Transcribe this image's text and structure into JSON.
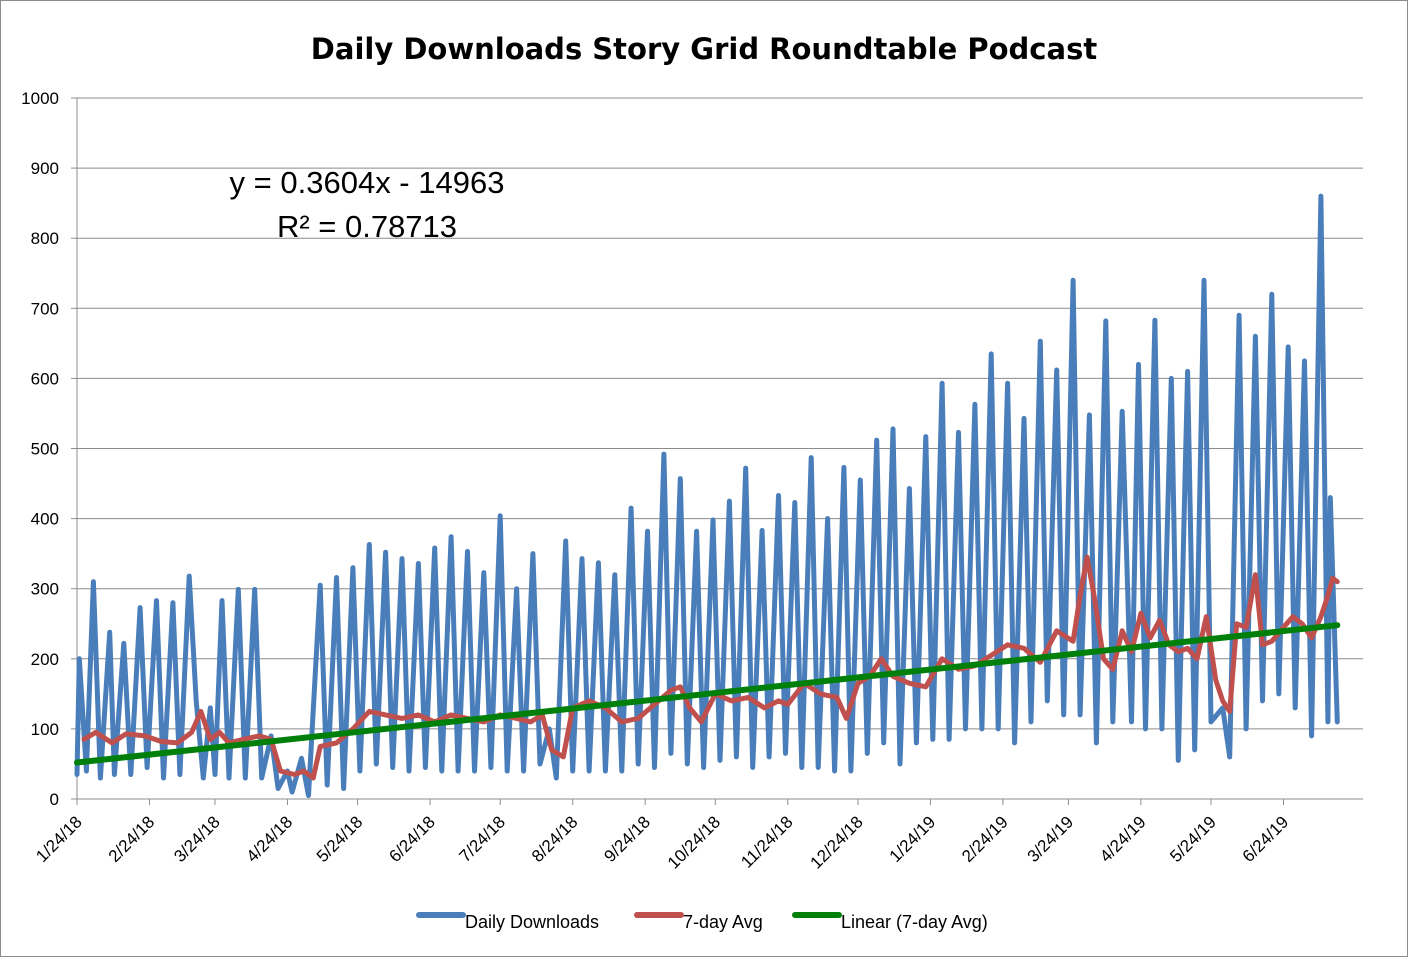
{
  "chart_data": {
    "type": "line",
    "title": "Daily Downloads Story Grid Roundtable Podcast",
    "xlabel": "",
    "ylabel": "",
    "ylim": [
      0,
      1000
    ],
    "yticks": [
      0,
      100,
      200,
      300,
      400,
      500,
      600,
      700,
      800,
      900,
      1000
    ],
    "x_start": "2018-01-24",
    "x_end": "2019-07-28",
    "xtick_labels": [
      "1/24/18",
      "2/24/18",
      "3/24/18",
      "4/24/18",
      "5/24/18",
      "6/24/18",
      "7/24/18",
      "8/24/18",
      "9/24/18",
      "10/24/18",
      "11/24/18",
      "12/24/18",
      "1/24/19",
      "2/24/19",
      "3/24/19",
      "4/24/19",
      "5/24/19",
      "6/24/19"
    ],
    "grid": "horizontal",
    "legend_position": "bottom",
    "trendline_equation": "y = 0.3604x - 14963",
    "trendline_r2": "R² = 0.78713",
    "series": [
      {
        "name": "Daily Downloads",
        "color": "#4a7ebb",
        "points": [
          [
            "2018-01-24",
            35
          ],
          [
            "2018-01-25",
            200
          ],
          [
            "2018-01-28",
            40
          ],
          [
            "2018-01-31",
            310
          ],
          [
            "2018-02-03",
            30
          ],
          [
            "2018-02-07",
            238
          ],
          [
            "2018-02-09",
            35
          ],
          [
            "2018-02-13",
            222
          ],
          [
            "2018-02-16",
            35
          ],
          [
            "2018-02-20",
            273
          ],
          [
            "2018-02-23",
            45
          ],
          [
            "2018-02-27",
            283
          ],
          [
            "2018-03-02",
            30
          ],
          [
            "2018-03-06",
            280
          ],
          [
            "2018-03-09",
            35
          ],
          [
            "2018-03-13",
            318
          ],
          [
            "2018-03-16",
            140
          ],
          [
            "2018-03-19",
            30
          ],
          [
            "2018-03-22",
            130
          ],
          [
            "2018-03-24",
            35
          ],
          [
            "2018-03-27",
            283
          ],
          [
            "2018-03-30",
            30
          ],
          [
            "2018-04-03",
            299
          ],
          [
            "2018-04-06",
            30
          ],
          [
            "2018-04-10",
            299
          ],
          [
            "2018-04-13",
            30
          ],
          [
            "2018-04-17",
            90
          ],
          [
            "2018-04-20",
            15
          ],
          [
            "2018-04-24",
            40
          ],
          [
            "2018-04-26",
            10
          ],
          [
            "2018-04-30",
            58
          ],
          [
            "2018-05-03",
            5
          ],
          [
            "2018-05-08",
            305
          ],
          [
            "2018-05-11",
            20
          ],
          [
            "2018-05-15",
            316
          ],
          [
            "2018-05-18",
            15
          ],
          [
            "2018-05-22",
            330
          ],
          [
            "2018-05-25",
            40
          ],
          [
            "2018-05-29",
            363
          ],
          [
            "2018-06-01",
            50
          ],
          [
            "2018-06-05",
            352
          ],
          [
            "2018-06-08",
            45
          ],
          [
            "2018-06-12",
            343
          ],
          [
            "2018-06-15",
            40
          ],
          [
            "2018-06-19",
            336
          ],
          [
            "2018-06-22",
            45
          ],
          [
            "2018-06-26",
            358
          ],
          [
            "2018-06-29",
            40
          ],
          [
            "2018-07-03",
            374
          ],
          [
            "2018-07-06",
            40
          ],
          [
            "2018-07-10",
            353
          ],
          [
            "2018-07-13",
            40
          ],
          [
            "2018-07-17",
            323
          ],
          [
            "2018-07-20",
            45
          ],
          [
            "2018-07-24",
            404
          ],
          [
            "2018-07-27",
            40
          ],
          [
            "2018-07-31",
            300
          ],
          [
            "2018-08-03",
            40
          ],
          [
            "2018-08-07",
            350
          ],
          [
            "2018-08-10",
            50
          ],
          [
            "2018-08-14",
            100
          ],
          [
            "2018-08-17",
            30
          ],
          [
            "2018-08-21",
            368
          ],
          [
            "2018-08-24",
            40
          ],
          [
            "2018-08-28",
            343
          ],
          [
            "2018-08-31",
            40
          ],
          [
            "2018-09-04",
            337
          ],
          [
            "2018-09-07",
            40
          ],
          [
            "2018-09-11",
            320
          ],
          [
            "2018-09-14",
            40
          ],
          [
            "2018-09-18",
            415
          ],
          [
            "2018-09-21",
            50
          ],
          [
            "2018-09-25",
            382
          ],
          [
            "2018-09-28",
            45
          ],
          [
            "2018-10-02",
            492
          ],
          [
            "2018-10-05",
            65
          ],
          [
            "2018-10-09",
            457
          ],
          [
            "2018-10-12",
            50
          ],
          [
            "2018-10-16",
            382
          ],
          [
            "2018-10-19",
            45
          ],
          [
            "2018-10-23",
            398
          ],
          [
            "2018-10-26",
            55
          ],
          [
            "2018-10-30",
            425
          ],
          [
            "2018-11-02",
            60
          ],
          [
            "2018-11-06",
            472
          ],
          [
            "2018-11-09",
            45
          ],
          [
            "2018-11-13",
            383
          ],
          [
            "2018-11-16",
            60
          ],
          [
            "2018-11-20",
            433
          ],
          [
            "2018-11-23",
            65
          ],
          [
            "2018-11-27",
            423
          ],
          [
            "2018-11-30",
            45
          ],
          [
            "2018-12-04",
            487
          ],
          [
            "2018-12-07",
            45
          ],
          [
            "2018-12-11",
            400
          ],
          [
            "2018-12-14",
            40
          ],
          [
            "2018-12-18",
            473
          ],
          [
            "2018-12-21",
            40
          ],
          [
            "2018-12-25",
            455
          ],
          [
            "2018-12-28",
            65
          ],
          [
            "2019-01-01",
            512
          ],
          [
            "2019-01-04",
            80
          ],
          [
            "2019-01-08",
            528
          ],
          [
            "2019-01-11",
            50
          ],
          [
            "2019-01-15",
            443
          ],
          [
            "2019-01-18",
            80
          ],
          [
            "2019-01-22",
            517
          ],
          [
            "2019-01-25",
            85
          ],
          [
            "2019-01-29",
            593
          ],
          [
            "2019-02-01",
            85
          ],
          [
            "2019-02-05",
            523
          ],
          [
            "2019-02-08",
            100
          ],
          [
            "2019-02-12",
            563
          ],
          [
            "2019-02-15",
            100
          ],
          [
            "2019-02-19",
            635
          ],
          [
            "2019-02-22",
            100
          ],
          [
            "2019-02-26",
            593
          ],
          [
            "2019-03-01",
            80
          ],
          [
            "2019-03-05",
            543
          ],
          [
            "2019-03-08",
            110
          ],
          [
            "2019-03-12",
            653
          ],
          [
            "2019-03-15",
            140
          ],
          [
            "2019-03-19",
            612
          ],
          [
            "2019-03-22",
            120
          ],
          [
            "2019-03-26",
            740
          ],
          [
            "2019-03-29",
            120
          ],
          [
            "2019-04-02",
            548
          ],
          [
            "2019-04-05",
            80
          ],
          [
            "2019-04-09",
            682
          ],
          [
            "2019-04-12",
            110
          ],
          [
            "2019-04-16",
            553
          ],
          [
            "2019-04-18",
            340
          ],
          [
            "2019-04-20",
            110
          ],
          [
            "2019-04-23",
            620
          ],
          [
            "2019-04-26",
            100
          ],
          [
            "2019-04-30",
            683
          ],
          [
            "2019-05-03",
            100
          ],
          [
            "2019-05-07",
            600
          ],
          [
            "2019-05-10",
            55
          ],
          [
            "2019-05-14",
            610
          ],
          [
            "2019-05-17",
            70
          ],
          [
            "2019-05-21",
            740
          ],
          [
            "2019-05-24",
            110
          ],
          [
            "2019-05-29",
            130
          ],
          [
            "2019-06-01",
            60
          ],
          [
            "2019-06-05",
            690
          ],
          [
            "2019-06-08",
            100
          ],
          [
            "2019-06-12",
            660
          ],
          [
            "2019-06-15",
            140
          ],
          [
            "2019-06-19",
            720
          ],
          [
            "2019-06-22",
            150
          ],
          [
            "2019-06-26",
            645
          ],
          [
            "2019-06-29",
            130
          ],
          [
            "2019-07-03",
            625
          ],
          [
            "2019-07-06",
            90
          ],
          [
            "2019-07-10",
            860
          ],
          [
            "2019-07-13",
            110
          ],
          [
            "2019-07-14",
            430
          ],
          [
            "2019-07-17",
            110
          ]
        ]
      },
      {
        "name": "7-day Avg",
        "color": "#c0504d",
        "points": [
          [
            "2018-01-27",
            85
          ],
          [
            "2018-02-01",
            95
          ],
          [
            "2018-02-08",
            80
          ],
          [
            "2018-02-14",
            93
          ],
          [
            "2018-02-22",
            90
          ],
          [
            "2018-03-01",
            82
          ],
          [
            "2018-03-08",
            80
          ],
          [
            "2018-03-14",
            95
          ],
          [
            "2018-03-18",
            125
          ],
          [
            "2018-03-22",
            85
          ],
          [
            "2018-03-26",
            95
          ],
          [
            "2018-03-30",
            80
          ],
          [
            "2018-04-05",
            85
          ],
          [
            "2018-04-12",
            90
          ],
          [
            "2018-04-17",
            85
          ],
          [
            "2018-04-21",
            40
          ],
          [
            "2018-04-27",
            35
          ],
          [
            "2018-05-01",
            40
          ],
          [
            "2018-05-05",
            30
          ],
          [
            "2018-05-08",
            75
          ],
          [
            "2018-05-15",
            80
          ],
          [
            "2018-05-22",
            100
          ],
          [
            "2018-05-29",
            125
          ],
          [
            "2018-06-05",
            120
          ],
          [
            "2018-06-12",
            115
          ],
          [
            "2018-06-19",
            120
          ],
          [
            "2018-06-26",
            110
          ],
          [
            "2018-07-03",
            120
          ],
          [
            "2018-07-10",
            115
          ],
          [
            "2018-07-17",
            110
          ],
          [
            "2018-07-24",
            120
          ],
          [
            "2018-07-31",
            115
          ],
          [
            "2018-08-06",
            110
          ],
          [
            "2018-08-11",
            120
          ],
          [
            "2018-08-15",
            70
          ],
          [
            "2018-08-20",
            60
          ],
          [
            "2018-08-24",
            130
          ],
          [
            "2018-08-31",
            140
          ],
          [
            "2018-09-07",
            130
          ],
          [
            "2018-09-14",
            110
          ],
          [
            "2018-09-21",
            115
          ],
          [
            "2018-09-28",
            135
          ],
          [
            "2018-10-05",
            155
          ],
          [
            "2018-10-09",
            160
          ],
          [
            "2018-10-13",
            130
          ],
          [
            "2018-10-18",
            110
          ],
          [
            "2018-10-24",
            150
          ],
          [
            "2018-10-31",
            140
          ],
          [
            "2018-11-07",
            145
          ],
          [
            "2018-11-14",
            130
          ],
          [
            "2018-11-20",
            140
          ],
          [
            "2018-11-24",
            135
          ],
          [
            "2018-12-01",
            165
          ],
          [
            "2018-12-08",
            150
          ],
          [
            "2018-12-15",
            145
          ],
          [
            "2018-12-19",
            115
          ],
          [
            "2018-12-24",
            165
          ],
          [
            "2018-12-29",
            175
          ],
          [
            "2019-01-03",
            200
          ],
          [
            "2019-01-08",
            175
          ],
          [
            "2019-01-15",
            165
          ],
          [
            "2019-01-22",
            160
          ],
          [
            "2019-01-29",
            200
          ],
          [
            "2019-02-05",
            185
          ],
          [
            "2019-02-12",
            190
          ],
          [
            "2019-02-19",
            205
          ],
          [
            "2019-02-26",
            220
          ],
          [
            "2019-03-05",
            215
          ],
          [
            "2019-03-12",
            195
          ],
          [
            "2019-03-19",
            240
          ],
          [
            "2019-03-26",
            225
          ],
          [
            "2019-03-29",
            290
          ],
          [
            "2019-04-01",
            345
          ],
          [
            "2019-04-04",
            290
          ],
          [
            "2019-04-08",
            200
          ],
          [
            "2019-04-12",
            185
          ],
          [
            "2019-04-16",
            240
          ],
          [
            "2019-04-20",
            210
          ],
          [
            "2019-04-24",
            265
          ],
          [
            "2019-04-28",
            230
          ],
          [
            "2019-05-02",
            255
          ],
          [
            "2019-05-06",
            220
          ],
          [
            "2019-05-10",
            210
          ],
          [
            "2019-05-14",
            215
          ],
          [
            "2019-05-18",
            200
          ],
          [
            "2019-05-22",
            260
          ],
          [
            "2019-05-26",
            170
          ],
          [
            "2019-05-29",
            140
          ],
          [
            "2019-06-01",
            125
          ],
          [
            "2019-06-04",
            250
          ],
          [
            "2019-06-08",
            245
          ],
          [
            "2019-06-12",
            320
          ],
          [
            "2019-06-15",
            220
          ],
          [
            "2019-06-19",
            225
          ],
          [
            "2019-06-24",
            245
          ],
          [
            "2019-06-28",
            260
          ],
          [
            "2019-07-02",
            250
          ],
          [
            "2019-07-06",
            230
          ],
          [
            "2019-07-10",
            260
          ],
          [
            "2019-07-13",
            290
          ],
          [
            "2019-07-15",
            315
          ],
          [
            "2019-07-17",
            310
          ]
        ]
      },
      {
        "name": "Linear (7-day Avg)",
        "color": "#00800a",
        "points": [
          [
            "2018-01-24",
            52
          ],
          [
            "2019-07-17",
            248
          ]
        ]
      }
    ]
  }
}
